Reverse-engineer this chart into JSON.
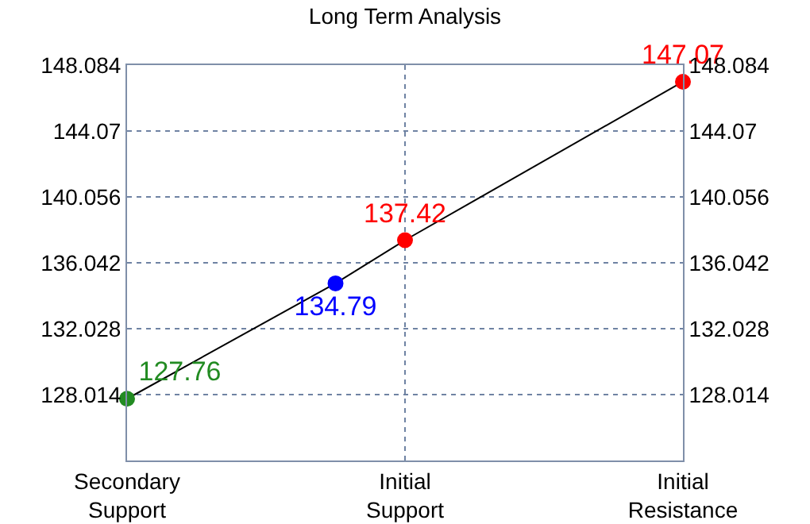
{
  "chart_data": {
    "type": "line",
    "title": "Long Term Analysis",
    "categories": [
      "Secondary Support",
      null,
      null,
      null,
      "Initial Support",
      null,
      null,
      null,
      "Initial Resistance"
    ],
    "ylim": [
      124,
      148.084
    ],
    "yticks": [
      128.014,
      132.028,
      136.042,
      140.056,
      144.07,
      148.084
    ],
    "y2lim": [
      124,
      148.084
    ],
    "y2ticks": [
      128.014,
      132.028,
      136.042,
      140.056,
      144.07,
      148.084
    ],
    "series": [
      {
        "color": "#000000",
        "values": [
          127.76,
          null,
          null,
          134.79,
          137.42,
          null,
          null,
          null,
          147.07
        ],
        "colors": [
          "#228b22",
          null,
          null,
          "#0000ff",
          "#ff0000",
          null,
          null,
          null,
          "#ff0000"
        ],
        "value_labels": [
          "127.76",
          null,
          null,
          "134.79",
          "137.42",
          null,
          null,
          null,
          "147.07"
        ]
      }
    ],
    "grid": true,
    "marker": "circle",
    "line_style": "solid",
    "legend": false
  }
}
